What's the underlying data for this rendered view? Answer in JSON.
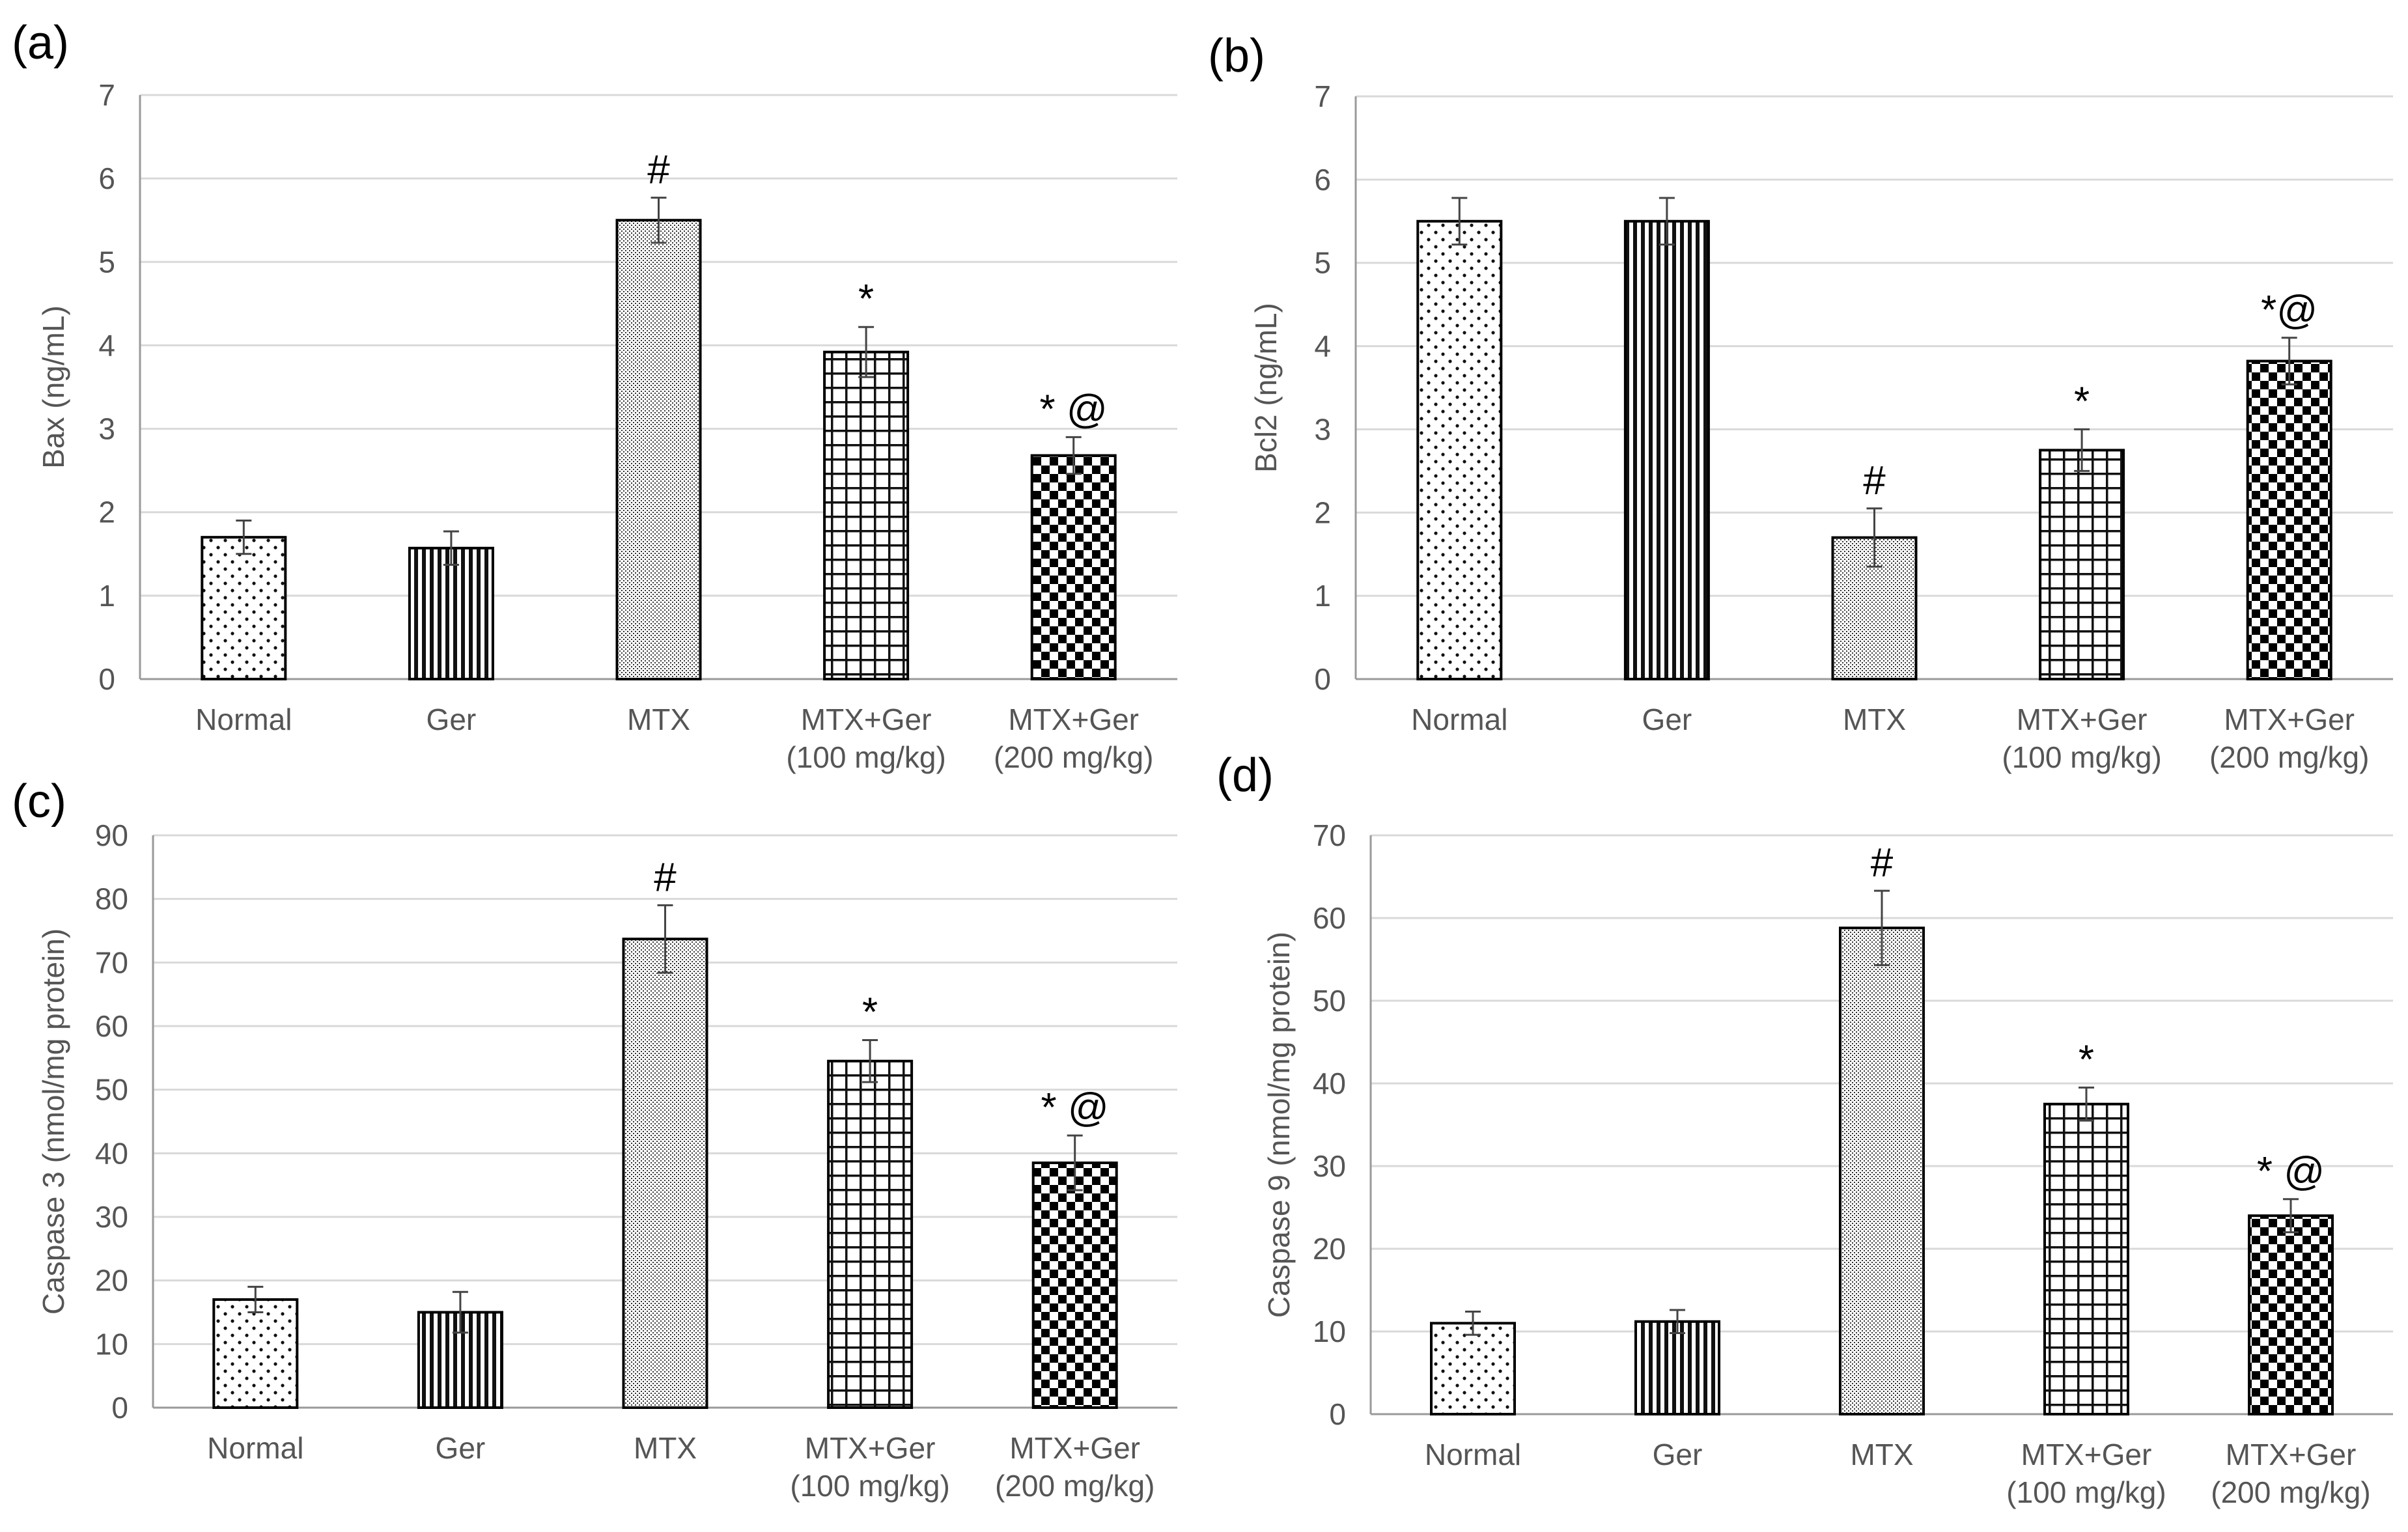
{
  "chart_data": [
    {
      "panel": "(a)",
      "type": "bar",
      "categories": [
        [
          "Normal"
        ],
        [
          "Ger"
        ],
        [
          "MTX"
        ],
        [
          "MTX+Ger",
          "(100 mg/kg)"
        ],
        [
          "MTX+Ger",
          "(200 mg/kg)"
        ]
      ],
      "values": [
        1.7,
        1.57,
        5.5,
        3.92,
        2.68
      ],
      "errors": [
        0.2,
        0.2,
        0.27,
        0.3,
        0.22
      ],
      "annotations": [
        "",
        "",
        "#",
        "*",
        "* @"
      ],
      "patterns": [
        "dots",
        "vlines",
        "fine",
        "grid",
        "checker"
      ],
      "ylabel": "Bax (ng/mL)",
      "ylim": [
        0,
        7
      ],
      "yticks": [
        0,
        1,
        2,
        3,
        4,
        5,
        6,
        7
      ],
      "grid": true
    },
    {
      "panel": "(b)",
      "type": "bar",
      "categories": [
        [
          "Normal"
        ],
        [
          "Ger"
        ],
        [
          "MTX"
        ],
        [
          "MTX+Ger",
          "(100 mg/kg)"
        ],
        [
          "MTX+Ger",
          "(200 mg/kg)"
        ]
      ],
      "values": [
        5.5,
        5.5,
        1.7,
        2.75,
        3.82
      ],
      "errors": [
        0.28,
        0.28,
        0.35,
        0.25,
        0.28
      ],
      "annotations": [
        "",
        "",
        "#",
        "*",
        "*@"
      ],
      "patterns": [
        "dots",
        "vlines",
        "fine",
        "grid",
        "checker"
      ],
      "ylabel": "Bcl2 (ng/mL)",
      "ylim": [
        0,
        7
      ],
      "yticks": [
        0,
        1,
        2,
        3,
        4,
        5,
        6,
        7
      ],
      "grid": true
    },
    {
      "panel": "(c)",
      "type": "bar",
      "categories": [
        [
          "Normal"
        ],
        [
          "Ger"
        ],
        [
          "MTX"
        ],
        [
          "MTX+Ger",
          "(100 mg/kg)"
        ],
        [
          "MTX+Ger",
          "(200 mg/kg)"
        ]
      ],
      "values": [
        17,
        15,
        73.7,
        54.5,
        38.5
      ],
      "errors": [
        2,
        3.2,
        5.3,
        3.3,
        4.3
      ],
      "annotations": [
        "",
        "",
        "#",
        "*",
        "* @"
      ],
      "patterns": [
        "dots",
        "vlines",
        "fine",
        "grid",
        "checker"
      ],
      "ylabel": "Caspase 3 (nmol/mg protein)",
      "ylim": [
        0,
        90
      ],
      "yticks": [
        0,
        10,
        20,
        30,
        40,
        50,
        60,
        70,
        80,
        90
      ],
      "grid": true
    },
    {
      "panel": "(d)",
      "type": "bar",
      "categories": [
        [
          "Normal"
        ],
        [
          "Ger"
        ],
        [
          "MTX"
        ],
        [
          "MTX+Ger",
          "(100 mg/kg)"
        ],
        [
          "MTX+Ger",
          "(200 mg/kg)"
        ]
      ],
      "values": [
        11,
        11.2,
        58.8,
        37.5,
        24
      ],
      "errors": [
        1.4,
        1.4,
        4.5,
        2,
        2
      ],
      "annotations": [
        "",
        "",
        "#",
        "*",
        "* @"
      ],
      "patterns": [
        "dots",
        "vlines",
        "fine",
        "grid",
        "checker"
      ],
      "ylabel": "Caspase 9 (nmol/mg protein)",
      "ylim": [
        0,
        70
      ],
      "yticks": [
        0,
        10,
        20,
        30,
        40,
        50,
        60,
        70
      ],
      "grid": true
    }
  ]
}
